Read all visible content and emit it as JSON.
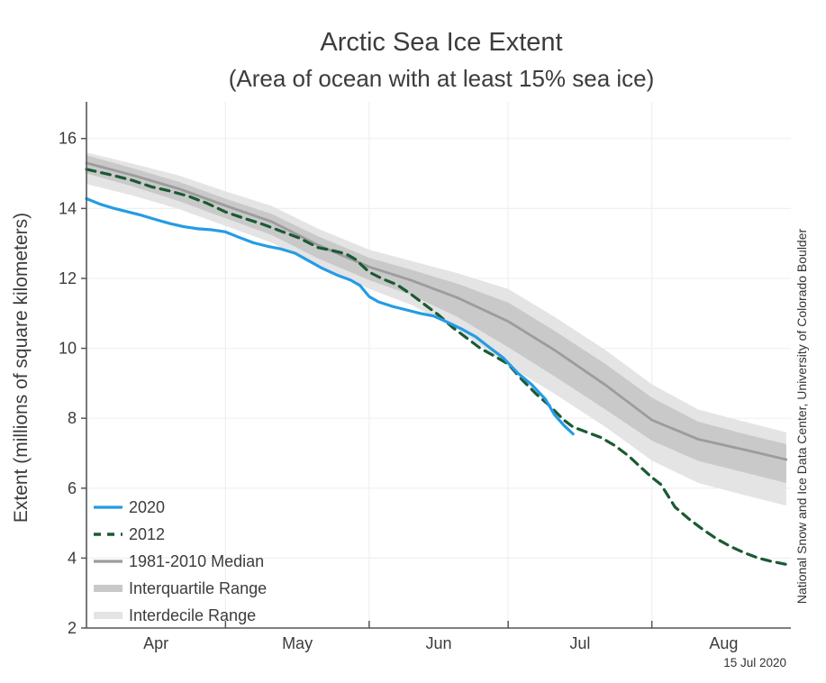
{
  "title": "Arctic Sea Ice Extent",
  "subtitle": "(Area of ocean with at least 15% sea ice)",
  "attribution": "National Snow and Ice Data Center, University of Colorado Boulder",
  "date_label": "15 Jul 2020",
  "colors": {
    "line_2020": "#259BE5",
    "line_2012": "#1A5A32",
    "median": "#9C9C9C",
    "interquartile": "#C9C9C9",
    "interdecile": "#E4E4E4",
    "axis": "#555555",
    "grid": "#F0F0F0",
    "text": "#3C3C3C"
  },
  "chart_data": {
    "type": "line",
    "title": "Arctic Sea Ice Extent",
    "subtitle": "(Area of ocean with at least 15% sea ice)",
    "ylabel": "Extent (millions of square kilometers)",
    "x_unit": "days since Apr 1",
    "x_domain": [
      0,
      152
    ],
    "y_domain": [
      2,
      17.05
    ],
    "grid": true,
    "legend_position": "lower-left",
    "y_axis": {
      "label": "Extent (millions of square kilometers)",
      "ticks": [
        2,
        4,
        6,
        8,
        10,
        12,
        14,
        16
      ]
    },
    "x_axis": {
      "months": [
        {
          "label": "Apr",
          "start_day": 0,
          "length": 30
        },
        {
          "label": "May",
          "start_day": 30,
          "length": 31
        },
        {
          "label": "Jun",
          "start_day": 61,
          "length": 30
        },
        {
          "label": "Jul",
          "start_day": 91,
          "length": 31
        },
        {
          "label": "Aug",
          "start_day": 122,
          "length": 31
        }
      ]
    },
    "bands": [
      {
        "name": "Interdecile Range",
        "color_key": "interdecile",
        "days": [
          0,
          10,
          20,
          30,
          40,
          50,
          61,
          70,
          80,
          91,
          101,
          112,
          122,
          132,
          142,
          151
        ],
        "upper": [
          15.6,
          15.28,
          14.94,
          14.49,
          14.07,
          13.42,
          12.82,
          12.5,
          12.15,
          11.7,
          10.9,
          9.95,
          8.97,
          8.25,
          7.9,
          7.6
        ],
        "lower": [
          14.7,
          14.37,
          13.98,
          13.5,
          13.02,
          12.33,
          11.7,
          11.25,
          10.55,
          9.51,
          8.7,
          7.75,
          6.79,
          6.15,
          5.8,
          5.5
        ]
      },
      {
        "name": "Interquartile Range",
        "color_key": "interquartile",
        "days": [
          0,
          10,
          20,
          30,
          40,
          50,
          61,
          70,
          80,
          91,
          101,
          112,
          122,
          132,
          142,
          151
        ],
        "upper": [
          15.52,
          15.15,
          14.76,
          14.28,
          13.84,
          13.2,
          12.59,
          12.25,
          11.85,
          11.31,
          10.5,
          9.55,
          8.59,
          7.9,
          7.55,
          7.26
        ],
        "lower": [
          15.0,
          14.63,
          14.21,
          13.72,
          13.24,
          12.57,
          11.95,
          11.53,
          10.9,
          10.03,
          9.2,
          8.25,
          7.36,
          6.78,
          6.45,
          6.15
        ]
      }
    ],
    "series": [
      {
        "name": "1981-2010 Median",
        "color_key": "median",
        "style": "solid",
        "width": 2.8,
        "days": [
          0,
          10,
          20,
          30,
          40,
          50,
          61,
          70,
          80,
          91,
          101,
          112,
          122,
          132,
          142,
          151
        ],
        "values": [
          15.3,
          14.95,
          14.56,
          14.08,
          13.62,
          12.95,
          12.33,
          11.95,
          11.45,
          10.77,
          9.95,
          8.95,
          7.95,
          7.4,
          7.1,
          6.82
        ]
      },
      {
        "name": "2012",
        "color_key": "line_2012",
        "style": "dashed",
        "width": 3.2,
        "days": [
          0,
          5,
          10,
          14,
          18,
          22,
          26,
          30,
          34,
          38,
          42,
          46,
          50,
          53,
          56,
          58,
          61,
          64,
          67,
          70,
          73,
          76,
          79,
          82,
          85,
          88,
          91,
          94,
          97,
          100,
          103,
          105,
          108,
          111,
          114,
          117,
          120,
          122,
          124,
          127,
          130,
          133,
          136,
          139,
          142,
          145,
          148,
          151
        ],
        "values": [
          15.12,
          14.97,
          14.8,
          14.62,
          14.5,
          14.35,
          14.15,
          13.9,
          13.72,
          13.55,
          13.35,
          13.15,
          12.88,
          12.8,
          12.7,
          12.55,
          12.18,
          11.98,
          11.82,
          11.55,
          11.25,
          10.95,
          10.6,
          10.3,
          10.0,
          9.78,
          9.55,
          9.1,
          8.7,
          8.35,
          7.95,
          7.75,
          7.6,
          7.45,
          7.22,
          6.92,
          6.55,
          6.31,
          6.1,
          5.46,
          5.12,
          4.82,
          4.55,
          4.33,
          4.15,
          4.0,
          3.9,
          3.82
        ]
      },
      {
        "name": "2020",
        "color_key": "line_2020",
        "style": "solid",
        "width": 3.2,
        "days": [
          0,
          3,
          6,
          9,
          12,
          15,
          18,
          21,
          24,
          27,
          30,
          33,
          36,
          39,
          42,
          45,
          48,
          51,
          54,
          57,
          59,
          61,
          63,
          66,
          69,
          72,
          75,
          78,
          81,
          84,
          87,
          90,
          93,
          96,
          99,
          101,
          103,
          105
        ],
        "values": [
          14.28,
          14.12,
          14.0,
          13.9,
          13.8,
          13.68,
          13.57,
          13.48,
          13.42,
          13.39,
          13.33,
          13.17,
          13.02,
          12.92,
          12.84,
          12.72,
          12.5,
          12.28,
          12.1,
          11.95,
          11.8,
          11.48,
          11.33,
          11.2,
          11.1,
          11.0,
          10.92,
          10.74,
          10.55,
          10.33,
          10.02,
          9.72,
          9.3,
          8.97,
          8.55,
          8.1,
          7.8,
          7.55
        ]
      }
    ],
    "legend": [
      {
        "label": "2020",
        "swatch": "line-solid",
        "color_key": "line_2020"
      },
      {
        "label": "2012",
        "swatch": "line-dashed",
        "color_key": "line_2012"
      },
      {
        "label": "1981-2010 Median",
        "swatch": "line-solid",
        "color_key": "median"
      },
      {
        "label": "Interquartile Range",
        "swatch": "band",
        "color_key": "interquartile"
      },
      {
        "label": "Interdecile Range",
        "swatch": "band",
        "color_key": "interdecile"
      }
    ]
  }
}
